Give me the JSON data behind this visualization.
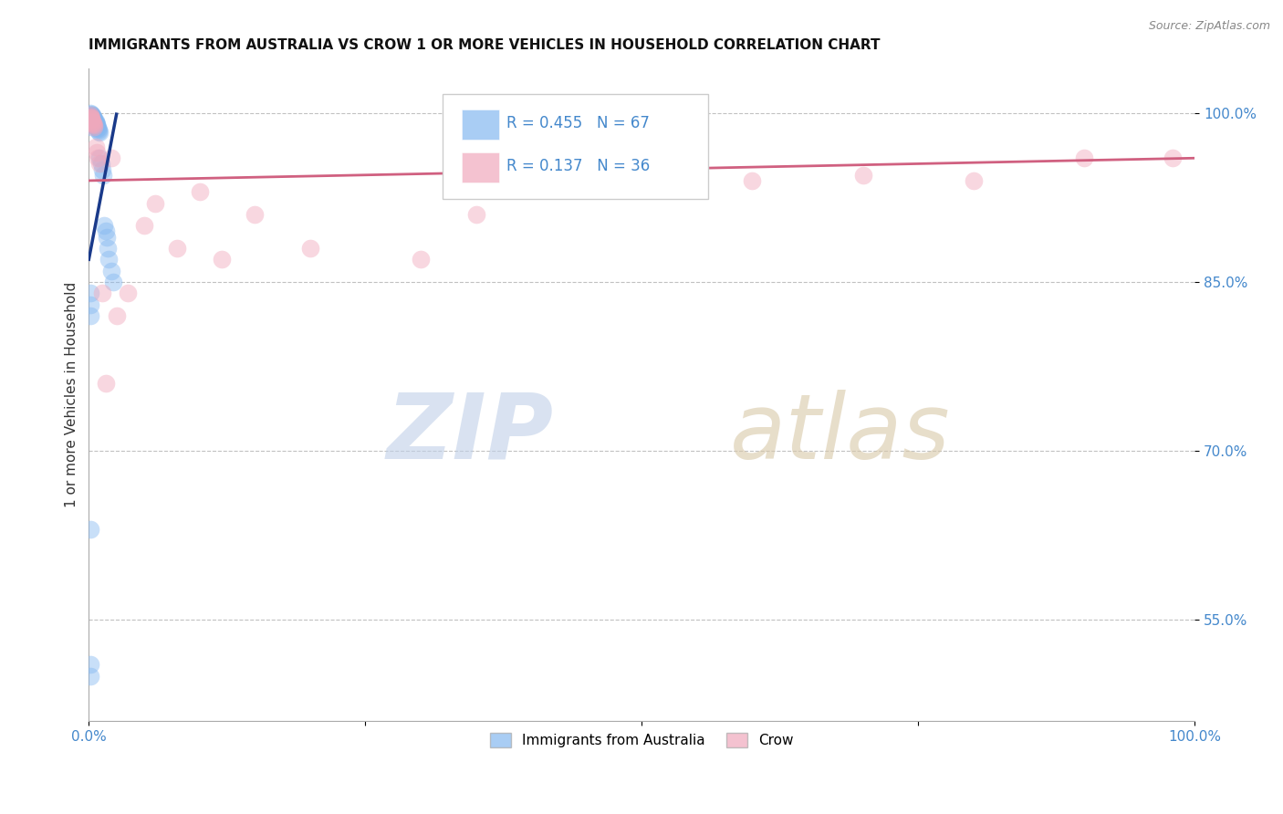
{
  "title": "IMMIGRANTS FROM AUSTRALIA VS CROW 1 OR MORE VEHICLES IN HOUSEHOLD CORRELATION CHART",
  "source": "Source: ZipAtlas.com",
  "ylabel": "1 or more Vehicles in Household",
  "ytick_labels": [
    "100.0%",
    "85.0%",
    "70.0%",
    "55.0%"
  ],
  "ytick_values": [
    1.0,
    0.85,
    0.7,
    0.55
  ],
  "xlim": [
    0.0,
    1.0
  ],
  "ylim": [
    0.46,
    1.04
  ],
  "legend_R_blue": "0.455",
  "legend_N_blue": "67",
  "legend_R_pink": "0.137",
  "legend_N_pink": "36",
  "legend_label_blue": "Immigrants from Australia",
  "legend_label_pink": "Crow",
  "blue_scatter_x": [
    0.001,
    0.001,
    0.001,
    0.001,
    0.001,
    0.001,
    0.001,
    0.002,
    0.002,
    0.002,
    0.002,
    0.002,
    0.002,
    0.002,
    0.002,
    0.002,
    0.002,
    0.002,
    0.002,
    0.003,
    0.003,
    0.003,
    0.003,
    0.003,
    0.003,
    0.003,
    0.003,
    0.003,
    0.004,
    0.004,
    0.004,
    0.004,
    0.004,
    0.004,
    0.005,
    0.005,
    0.005,
    0.005,
    0.006,
    0.006,
    0.006,
    0.006,
    0.007,
    0.007,
    0.007,
    0.008,
    0.008,
    0.009,
    0.009,
    0.01,
    0.01,
    0.011,
    0.012,
    0.013,
    0.014,
    0.015,
    0.016,
    0.017,
    0.018,
    0.02,
    0.022,
    0.001,
    0.001,
    0.001,
    0.001,
    0.001,
    0.001
  ],
  "blue_scatter_y": [
    1.0,
    0.998,
    0.997,
    0.996,
    0.995,
    0.994,
    0.993,
    0.999,
    0.998,
    0.997,
    0.996,
    0.995,
    0.994,
    0.993,
    0.992,
    0.991,
    0.99,
    0.989,
    0.988,
    0.998,
    0.997,
    0.996,
    0.995,
    0.994,
    0.993,
    0.992,
    0.991,
    0.99,
    0.997,
    0.996,
    0.995,
    0.994,
    0.993,
    0.992,
    0.995,
    0.994,
    0.993,
    0.992,
    0.993,
    0.992,
    0.991,
    0.99,
    0.99,
    0.989,
    0.988,
    0.987,
    0.986,
    0.985,
    0.984,
    0.983,
    0.96,
    0.955,
    0.95,
    0.945,
    0.9,
    0.895,
    0.89,
    0.88,
    0.87,
    0.86,
    0.85,
    0.84,
    0.83,
    0.82,
    0.63,
    0.51,
    0.5
  ],
  "pink_scatter_x": [
    0.001,
    0.001,
    0.001,
    0.002,
    0.002,
    0.002,
    0.003,
    0.003,
    0.004,
    0.004,
    0.005,
    0.005,
    0.006,
    0.007,
    0.008,
    0.01,
    0.012,
    0.015,
    0.02,
    0.025,
    0.035,
    0.05,
    0.06,
    0.08,
    0.1,
    0.12,
    0.15,
    0.2,
    0.3,
    0.35,
    0.5,
    0.6,
    0.7,
    0.8,
    0.9,
    0.98
  ],
  "pink_scatter_y": [
    0.998,
    0.997,
    0.996,
    0.996,
    0.995,
    0.994,
    0.993,
    0.992,
    0.991,
    0.99,
    0.989,
    0.988,
    0.97,
    0.965,
    0.96,
    0.955,
    0.84,
    0.76,
    0.96,
    0.82,
    0.84,
    0.9,
    0.92,
    0.88,
    0.93,
    0.87,
    0.91,
    0.88,
    0.87,
    0.91,
    0.94,
    0.94,
    0.945,
    0.94,
    0.96,
    0.96
  ],
  "blue_line_x": [
    0.0,
    0.025
  ],
  "blue_line_y": [
    0.87,
    0.999
  ],
  "pink_line_x": [
    0.0,
    1.0
  ],
  "pink_line_y": [
    0.94,
    0.96
  ],
  "watermark_zip": "ZIP",
  "watermark_atlas": "atlas",
  "bg_color": "#ffffff",
  "blue_color": "#85b8f0",
  "pink_color": "#f0a8bc",
  "blue_line_color": "#1a3a8a",
  "pink_line_color": "#d06080",
  "title_fontsize": 11,
  "axis_label_color": "#4488cc",
  "source_color": "#888888"
}
